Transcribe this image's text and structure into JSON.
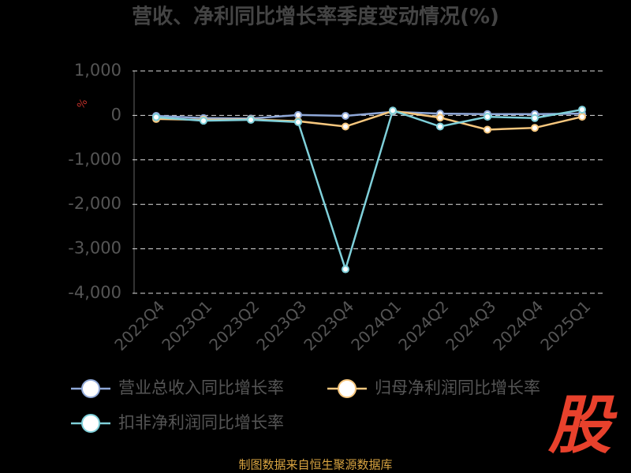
{
  "chart_data": {
    "type": "line",
    "title": "营收、净利同比增长率季度变动情况(%)",
    "y_unit": "%",
    "categories": [
      "2022Q4",
      "2023Q1",
      "2023Q2",
      "2023Q3",
      "2023Q4",
      "2024Q1",
      "2024Q2",
      "2024Q3",
      "2024Q4",
      "2025Q1"
    ],
    "series": [
      {
        "name": "营业总收入同比增长率",
        "color": "#8fa8d8",
        "values": [
          -10,
          -60,
          -70,
          10,
          -10,
          80,
          40,
          30,
          30,
          40
        ]
      },
      {
        "name": "归母净利润同比增长率",
        "color": "#f7c77e",
        "values": [
          -80,
          -100,
          -90,
          -130,
          -250,
          100,
          -50,
          -320,
          -280,
          -30
        ]
      },
      {
        "name": "扣非净利润同比增长率",
        "color": "#7fd0da",
        "values": [
          -40,
          -120,
          -100,
          -150,
          -3460,
          110,
          -250,
          -30,
          -60,
          130
        ]
      }
    ],
    "ylim": [
      -4000,
      1000
    ],
    "yticks": [
      {
        "value": 1000,
        "label": "1,000"
      },
      0,
      {
        "value": -1000,
        "label": "-1,000"
      },
      {
        "value": -2000,
        "label": "-2,000"
      },
      {
        "value": -3000,
        "label": "-3,000"
      },
      {
        "value": -4000,
        "label": "-4,000"
      }
    ],
    "grid": true,
    "source": "制图数据来自恒生聚源数据库",
    "watermark": "股"
  }
}
